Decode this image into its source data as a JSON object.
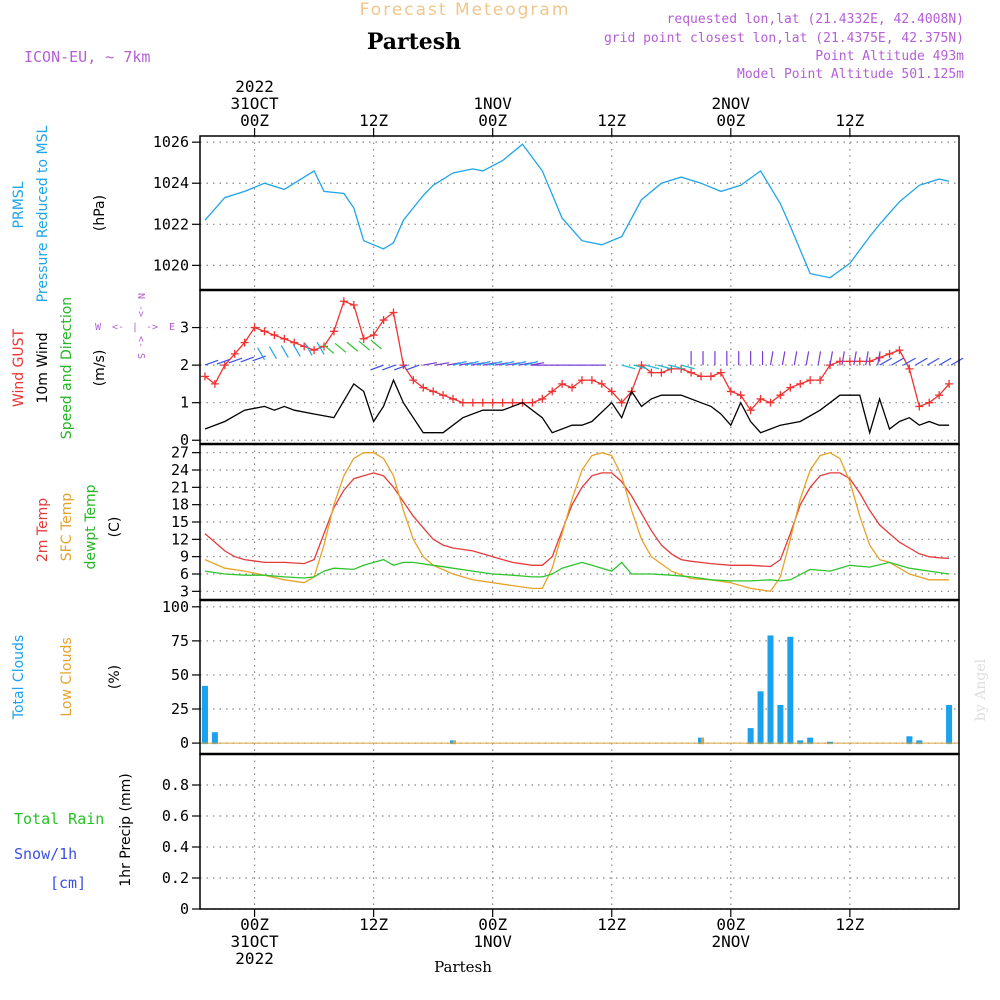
{
  "header": {
    "forecast_title": "Forecast Meteogram",
    "location": "Partesh",
    "model": "ICON-EU, ~ 7km",
    "requested": "requested lon,lat (21.4332E, 42.4008N)",
    "grid_point": "grid point closest lon,lat (21.4375E, 42.375N)",
    "point_altitude": "Point Altitude 493m",
    "model_altitude": "Model Point Altitude 501.125m"
  },
  "footer": {
    "location": "Partesh",
    "credit": "by Angel"
  },
  "time_axis": {
    "labels": [
      {
        "t": 0,
        "lines": [
          "2022",
          "31OCT",
          "00Z"
        ]
      },
      {
        "t": 12,
        "lines": [
          "12Z"
        ]
      },
      {
        "t": 24,
        "lines": [
          "1NOV",
          "00Z"
        ]
      },
      {
        "t": 36,
        "lines": [
          "12Z"
        ]
      },
      {
        "t": 48,
        "lines": [
          "2NOV",
          "00Z"
        ]
      },
      {
        "t": 60,
        "lines": [
          "12Z"
        ]
      }
    ],
    "bottom_labels": [
      {
        "t": 0,
        "lines": [
          "00Z",
          "31OCT",
          "2022"
        ]
      },
      {
        "t": 12,
        "lines": [
          "12Z"
        ]
      },
      {
        "t": 24,
        "lines": [
          "00Z",
          "1NOV"
        ]
      },
      {
        "t": 36,
        "lines": [
          "12Z"
        ]
      },
      {
        "t": 48,
        "lines": [
          "00Z",
          "2NOV"
        ]
      },
      {
        "t": 60,
        "lines": [
          "12Z"
        ]
      }
    ],
    "range": [
      -5.5,
      71
    ]
  },
  "panel_labels": {
    "pressure": {
      "line1": "PRMSL",
      "line2": "Pressure Reduced to MSL",
      "unit": "(hPa)"
    },
    "wind": {
      "gust": "Wind GUST",
      "wind10": "10m Wind",
      "speed_dir": "Speed and Direction",
      "unit": "(m/s)",
      "compass": {
        "n": "N",
        "s": "S",
        "w": "W",
        "e": "E",
        "arrow_l": "<-",
        "arrow_r": "->",
        "sep": "|"
      }
    },
    "temp": {
      "t2m": "2m Temp",
      "sfc": "SFC Temp",
      "dew": "dewpt Temp",
      "unit": "(C)"
    },
    "clouds": {
      "total": "Total Clouds",
      "low": "Low Clouds",
      "unit": "(%)"
    },
    "precip": {
      "rain": "Total Rain",
      "snow": "Snow/1h",
      "cm": "[cm]",
      "axis": "1hr Precip (mm)"
    }
  },
  "colors": {
    "pressure": "#1fa5e8",
    "gust": "#ee3333",
    "wind": "#000000",
    "temp": "#e33b3b",
    "sfc": "#e5a32a",
    "dew": "#2ec42e",
    "total_cloud": "#1ba1ee",
    "low_cloud": "#dda33a",
    "purple": "#b45fd6",
    "rain_label": "#26c226",
    "snow_label": "#3b4fe6"
  },
  "chart_data": [
    {
      "type": "line",
      "title": "PRMSL Pressure Reduced to MSL",
      "ylabel": "(hPa)",
      "ylim": [
        1018.8,
        1026.3
      ],
      "yticks": [
        1020,
        1022,
        1024,
        1026
      ],
      "series": [
        {
          "name": "PRMSL",
          "color": "#1fa5e8",
          "x": [
            -5,
            -3,
            -1,
            1,
            3,
            4,
            6,
            7,
            9,
            10,
            11,
            13,
            14,
            15,
            17,
            18,
            20,
            22,
            23,
            25,
            27,
            29,
            31,
            33,
            35,
            37,
            39,
            41,
            43,
            45,
            47,
            49,
            51,
            53,
            54,
            56,
            58,
            60,
            62,
            63,
            65,
            67,
            69,
            70
          ],
          "y": [
            1022.2,
            1023.3,
            1023.6,
            1024.0,
            1023.7,
            1024.0,
            1024.6,
            1023.6,
            1023.5,
            1022.8,
            1021.2,
            1020.8,
            1021.1,
            1022.2,
            1023.4,
            1023.9,
            1024.5,
            1024.7,
            1024.6,
            1025.1,
            1025.9,
            1024.6,
            1022.3,
            1021.2,
            1021.0,
            1021.4,
            1023.2,
            1024.0,
            1024.3,
            1024.0,
            1023.6,
            1023.9,
            1024.6,
            1023.0,
            1021.9,
            1019.6,
            1019.4,
            1020.1,
            1021.4,
            1022.0,
            1023.1,
            1023.9,
            1024.2,
            1024.1
          ]
        }
      ]
    },
    {
      "type": "line",
      "title": "Wind GUST / 10m Wind Speed and Direction",
      "ylabel": "(m/s)",
      "ylim": [
        -0.1,
        4.0
      ],
      "yticks": [
        0,
        1,
        2,
        3
      ],
      "series": [
        {
          "name": "Wind GUST",
          "color": "#ee3333",
          "markers": "+",
          "x": [
            -5,
            -4,
            -3,
            -2,
            -1,
            0,
            1,
            2,
            3,
            4,
            5,
            6,
            7,
            8,
            9,
            10,
            11,
            12,
            13,
            14,
            15,
            16,
            17,
            18,
            19,
            20,
            21,
            22,
            23,
            24,
            25,
            26,
            27,
            28,
            29,
            30,
            31,
            32,
            33,
            34,
            35,
            36,
            37,
            38,
            39,
            40,
            41,
            42,
            43,
            44,
            45,
            46,
            47,
            48,
            49,
            50,
            51,
            52,
            53,
            54,
            55,
            56,
            57,
            58,
            59,
            60,
            61,
            62,
            63,
            64,
            65,
            66,
            67,
            68,
            69,
            70
          ],
          "y": [
            1.7,
            1.5,
            2.0,
            2.3,
            2.6,
            3.0,
            2.9,
            2.8,
            2.7,
            2.6,
            2.5,
            2.4,
            2.5,
            2.9,
            3.7,
            3.6,
            2.7,
            2.8,
            3.2,
            3.4,
            2.0,
            1.6,
            1.4,
            1.3,
            1.2,
            1.1,
            1.0,
            1.0,
            1.0,
            1.0,
            1.0,
            1.0,
            1.0,
            1.0,
            1.1,
            1.3,
            1.5,
            1.4,
            1.6,
            1.6,
            1.5,
            1.3,
            1.0,
            1.3,
            2.0,
            1.8,
            1.8,
            1.9,
            1.9,
            1.8,
            1.7,
            1.7,
            1.8,
            1.3,
            1.2,
            0.8,
            1.1,
            1.0,
            1.2,
            1.4,
            1.5,
            1.6,
            1.6,
            2.0,
            2.1,
            2.1,
            2.1,
            2.1,
            2.2,
            2.3,
            2.4,
            1.9,
            0.9,
            1.0,
            1.2,
            1.5
          ]
        },
        {
          "name": "10m Wind",
          "color": "#000000",
          "x": [
            -5,
            -3,
            -1,
            1,
            2,
            3,
            4,
            6,
            8,
            10,
            11,
            12,
            13,
            14,
            15,
            17,
            19,
            21,
            23,
            25,
            27,
            29,
            30,
            32,
            33,
            34,
            36,
            37,
            38,
            39,
            40,
            41,
            43,
            45,
            46,
            47,
            48,
            49,
            50,
            51,
            52,
            53,
            55,
            57,
            59,
            61,
            62,
            63,
            64,
            65,
            66,
            67,
            68,
            69,
            70
          ],
          "y": [
            0.3,
            0.5,
            0.8,
            0.9,
            0.8,
            0.9,
            0.8,
            0.7,
            0.6,
            1.5,
            1.3,
            0.5,
            0.9,
            1.6,
            1.0,
            0.2,
            0.2,
            0.6,
            0.8,
            0.8,
            1.0,
            0.6,
            0.2,
            0.4,
            0.4,
            0.5,
            1.0,
            0.6,
            1.3,
            0.9,
            1.1,
            1.2,
            1.2,
            1.0,
            0.9,
            0.7,
            0.4,
            1.0,
            0.5,
            0.2,
            0.3,
            0.4,
            0.5,
            0.8,
            1.2,
            1.2,
            0.2,
            1.1,
            0.3,
            0.5,
            0.6,
            0.4,
            0.5,
            0.4,
            0.4
          ]
        }
      ]
    },
    {
      "type": "line",
      "title": "2m Temp / SFC Temp / dewpt Temp",
      "ylabel": "(C)",
      "ylim": [
        1.5,
        28.5
      ],
      "yticks": [
        3,
        6,
        9,
        12,
        15,
        18,
        21,
        24,
        27
      ],
      "series": [
        {
          "name": "2m Temp",
          "color": "#e33b3b",
          "x": [
            -5,
            -4,
            -3,
            -2,
            -1,
            1,
            3,
            5,
            6,
            7,
            8,
            9,
            10,
            11,
            12,
            13,
            14,
            15,
            16,
            17,
            18,
            19,
            20,
            22,
            24,
            26,
            28,
            29,
            30,
            31,
            32,
            33,
            34,
            35,
            36,
            37,
            38,
            39,
            40,
            41,
            42,
            43,
            44,
            45,
            46,
            48,
            50,
            52,
            53,
            54,
            55,
            56,
            57,
            58,
            59,
            60,
            61,
            62,
            63,
            64,
            65,
            66,
            67,
            68,
            69,
            70
          ],
          "y": [
            13,
            11.5,
            10,
            9,
            8.5,
            8,
            8,
            7.8,
            8.5,
            13,
            17.5,
            20.5,
            22.5,
            23,
            23.5,
            23,
            21,
            18.5,
            16,
            14,
            12,
            11,
            10.5,
            10,
            9,
            8,
            7.5,
            7.5,
            9,
            13.5,
            18,
            21,
            23,
            23.5,
            23.5,
            22,
            19.5,
            16.5,
            13.5,
            11,
            9.5,
            8.5,
            8.2,
            8,
            7.8,
            7.5,
            7.5,
            7.3,
            8.5,
            13,
            18,
            21,
            23,
            23.5,
            23.5,
            22.5,
            20,
            17,
            14.5,
            13,
            11.5,
            10.5,
            9.5,
            9,
            8.8,
            8.7
          ]
        },
        {
          "name": "SFC Temp",
          "color": "#e5a32a",
          "x": [
            -5,
            -3,
            -1,
            1,
            3,
            5,
            6,
            7,
            8,
            9,
            10,
            11,
            12,
            13,
            14,
            15,
            16,
            17,
            18,
            20,
            22,
            24,
            26,
            28,
            29,
            30,
            31,
            32,
            33,
            34,
            35,
            36,
            37,
            38,
            39,
            40,
            42,
            44,
            46,
            48,
            50,
            52,
            53,
            54,
            55,
            56,
            57,
            58,
            59,
            60,
            61,
            62,
            63,
            64,
            65,
            66,
            67,
            68,
            69,
            70
          ],
          "y": [
            8.5,
            7,
            6.5,
            5.8,
            5,
            4.5,
            5.5,
            11,
            18,
            23,
            26,
            27,
            27,
            26,
            23,
            17,
            12,
            9,
            7.5,
            6,
            5,
            4.5,
            4,
            3.5,
            3.5,
            7,
            13,
            19,
            24,
            26.5,
            27,
            26.5,
            23,
            17,
            12,
            9,
            6.5,
            5.2,
            5,
            4.5,
            3.5,
            3,
            5.5,
            12,
            19,
            24,
            26.5,
            27,
            26,
            22,
            16,
            11,
            8.5,
            8,
            7,
            6,
            5.5,
            5,
            5,
            5
          ]
        },
        {
          "name": "dewpt Temp",
          "color": "#2ec42e",
          "x": [
            -5,
            -3,
            -1,
            1,
            3,
            5,
            6,
            7,
            8,
            10,
            11,
            12,
            13,
            14,
            15,
            16,
            18,
            20,
            22,
            24,
            26,
            28,
            29,
            30,
            31,
            32,
            33,
            34,
            35,
            36,
            37,
            38,
            40,
            42,
            44,
            46,
            48,
            50,
            52,
            53,
            54,
            56,
            58,
            59,
            60,
            62,
            64,
            66,
            68,
            70
          ],
          "y": [
            6.5,
            6,
            5.8,
            5.8,
            5.5,
            5.3,
            5.5,
            6.5,
            7,
            6.8,
            7.5,
            8,
            8.5,
            7.5,
            8,
            8,
            7.5,
            7,
            6.5,
            6,
            5.8,
            5.5,
            5.5,
            6,
            7,
            7.5,
            8,
            7.5,
            7,
            6.5,
            8,
            6,
            6,
            5.8,
            5.5,
            5,
            4.8,
            4.8,
            5,
            4.8,
            5,
            6.8,
            6.5,
            7,
            7.5,
            7.2,
            8,
            7,
            6.5,
            6
          ]
        }
      ]
    },
    {
      "type": "bar",
      "title": "Total Clouds / Low Clouds",
      "ylabel": "(%)",
      "ylim": [
        -8,
        105
      ],
      "yticks": [
        0,
        25,
        50,
        75,
        100
      ],
      "series": [
        {
          "name": "Total Clouds",
          "color": "#1ba1ee",
          "x": [
            -5,
            -4,
            20,
            45,
            50,
            51,
            52,
            53,
            54,
            55,
            56,
            58,
            66,
            67,
            70
          ],
          "y": [
            42,
            8,
            2,
            4,
            11,
            38,
            79,
            28,
            78,
            2,
            4,
            1,
            5,
            2,
            28
          ]
        },
        {
          "name": "Low Clouds",
          "color": "#dda33a",
          "x": [
            20,
            45
          ],
          "y": [
            2,
            4
          ]
        }
      ]
    },
    {
      "type": "bar",
      "title": "1hr Precip (mm)",
      "ylabel": "1hr Precip (mm)",
      "ylim": [
        0,
        1.0
      ],
      "yticks": [
        0,
        0.2,
        0.4,
        0.6,
        0.8
      ],
      "series": [
        {
          "name": "Total Rain",
          "color": "#26c226",
          "x": [],
          "y": []
        },
        {
          "name": "Snow/1h",
          "color": "#3b4fe6",
          "x": [],
          "y": []
        }
      ]
    }
  ]
}
